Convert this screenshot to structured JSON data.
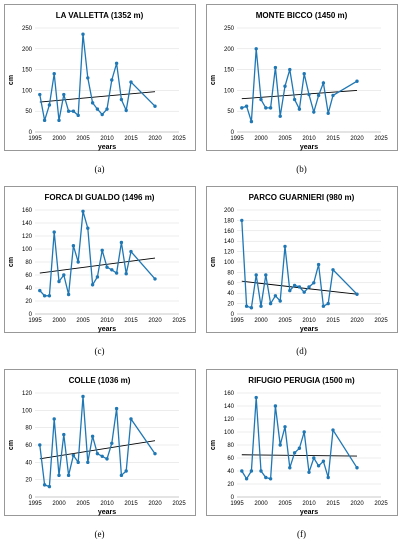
{
  "figure": {
    "colors": {
      "series": "#1f77b4",
      "trend": "#000000",
      "frame": "#7f7f7f",
      "grid": "#d9d9d9"
    }
  },
  "chart_data": [
    {
      "type": "line",
      "title": "LA VALLETTA (1352 m)",
      "caption": "(a)",
      "xlabel": "years",
      "ylabel": "cm",
      "xlim": [
        1995,
        2025
      ],
      "xticks": [
        1995,
        2000,
        2005,
        2010,
        2015,
        2020,
        2025
      ],
      "ylim": [
        0,
        250
      ],
      "yticks": [
        0,
        50,
        100,
        150,
        200,
        250
      ],
      "x": [
        1996,
        1997,
        1998,
        1999,
        2000,
        2001,
        2002,
        2003,
        2004,
        2005,
        2006,
        2007,
        2008,
        2009,
        2010,
        2011,
        2012,
        2013,
        2014,
        2015,
        2020
      ],
      "y": [
        90,
        28,
        65,
        140,
        28,
        90,
        50,
        50,
        40,
        235,
        130,
        70,
        55,
        42,
        55,
        125,
        165,
        78,
        52,
        120,
        62
      ],
      "trend": {
        "x": [
          1996,
          2020
        ],
        "y": [
          72,
          97
        ]
      }
    },
    {
      "type": "line",
      "title": "MONTE BICCO (1450 m)",
      "caption": "(b)",
      "xlabel": "years",
      "ylabel": "cm",
      "xlim": [
        1995,
        2025
      ],
      "xticks": [
        1995,
        2000,
        2005,
        2010,
        2015,
        2020,
        2025
      ],
      "ylim": [
        0,
        250
      ],
      "yticks": [
        0,
        50,
        100,
        150,
        200,
        250
      ],
      "x": [
        1996,
        1997,
        1998,
        1999,
        2000,
        2001,
        2002,
        2003,
        2004,
        2005,
        2006,
        2007,
        2008,
        2009,
        2010,
        2011,
        2012,
        2013,
        2014,
        2015,
        2020
      ],
      "y": [
        58,
        62,
        25,
        200,
        78,
        58,
        58,
        155,
        38,
        110,
        150,
        78,
        55,
        140,
        90,
        48,
        88,
        118,
        45,
        88,
        122
      ],
      "trend": {
        "x": [
          1996,
          2020
        ],
        "y": [
          80,
          100
        ]
      }
    },
    {
      "type": "line",
      "title": "FORCA DI GUALDO (1496 m)",
      "caption": "(c)",
      "xlabel": "years",
      "ylabel": "cm",
      "xlim": [
        1995,
        2025
      ],
      "xticks": [
        1995,
        2000,
        2005,
        2010,
        2015,
        2020,
        2025
      ],
      "ylim": [
        0,
        160
      ],
      "yticks": [
        0,
        20,
        40,
        60,
        80,
        100,
        120,
        140,
        160
      ],
      "x": [
        1996,
        1997,
        1998,
        1999,
        2000,
        2001,
        2002,
        2003,
        2004,
        2005,
        2006,
        2007,
        2008,
        2009,
        2010,
        2011,
        2012,
        2013,
        2014,
        2015,
        2020
      ],
      "y": [
        36,
        28,
        28,
        126,
        50,
        60,
        30,
        105,
        80,
        158,
        132,
        45,
        57,
        98,
        72,
        68,
        63,
        110,
        62,
        96,
        54
      ],
      "trend": {
        "x": [
          1996,
          2020
        ],
        "y": [
          63,
          86
        ]
      }
    },
    {
      "type": "line",
      "title": "PARCO GUARNIERI (980 m)",
      "caption": "(d)",
      "xlabel": "years",
      "ylabel": "cm",
      "xlim": [
        1995,
        2025
      ],
      "xticks": [
        1995,
        2000,
        2005,
        2010,
        2015,
        2020,
        2025
      ],
      "ylim": [
        0,
        200
      ],
      "yticks": [
        0,
        20,
        40,
        60,
        80,
        100,
        120,
        140,
        160,
        180,
        200
      ],
      "x": [
        1996,
        1997,
        1998,
        1999,
        2000,
        2001,
        2002,
        2003,
        2004,
        2005,
        2006,
        2007,
        2008,
        2009,
        2010,
        2011,
        2012,
        2013,
        2014,
        2015,
        2020
      ],
      "y": [
        180,
        15,
        12,
        75,
        15,
        75,
        20,
        35,
        25,
        130,
        45,
        55,
        52,
        42,
        52,
        60,
        95,
        15,
        20,
        85,
        38
      ],
      "trend": {
        "x": [
          1996,
          2020
        ],
        "y": [
          63,
          38
        ]
      }
    },
    {
      "type": "line",
      "title": "COLLE (1036 m)",
      "caption": "(e)",
      "xlabel": "years",
      "ylabel": "cm",
      "xlim": [
        1995,
        2025
      ],
      "xticks": [
        1995,
        2000,
        2005,
        2010,
        2015,
        2020,
        2025
      ],
      "ylim": [
        0,
        120
      ],
      "yticks": [
        0,
        20,
        40,
        60,
        80,
        100,
        120
      ],
      "x": [
        1996,
        1997,
        1998,
        1999,
        2000,
        2001,
        2002,
        2003,
        2004,
        2005,
        2006,
        2007,
        2008,
        2009,
        2010,
        2011,
        2012,
        2013,
        2014,
        2015,
        2020
      ],
      "y": [
        60,
        14,
        12,
        90,
        25,
        72,
        25,
        48,
        40,
        116,
        40,
        70,
        50,
        47,
        44,
        62,
        102,
        25,
        30,
        90,
        50
      ],
      "trend": {
        "x": [
          1996,
          2020
        ],
        "y": [
          44,
          65
        ]
      }
    },
    {
      "type": "line",
      "title": "RIFUGIO PERUGIA (1500 m)",
      "caption": "(f)",
      "xlabel": "years",
      "ylabel": "cm",
      "xlim": [
        1995,
        2025
      ],
      "xticks": [
        1995,
        2000,
        2005,
        2010,
        2015,
        2020,
        2025
      ],
      "ylim": [
        0,
        160
      ],
      "yticks": [
        0,
        20,
        40,
        60,
        80,
        100,
        120,
        140,
        160
      ],
      "x": [
        1996,
        1997,
        1998,
        1999,
        2000,
        2001,
        2002,
        2003,
        2004,
        2005,
        2006,
        2007,
        2008,
        2009,
        2010,
        2011,
        2012,
        2013,
        2014,
        2015,
        2020
      ],
      "y": [
        40,
        28,
        40,
        153,
        40,
        30,
        28,
        140,
        80,
        108,
        45,
        68,
        75,
        100,
        38,
        60,
        48,
        55,
        30,
        103,
        45
      ],
      "trend": {
        "x": [
          1996,
          2020
        ],
        "y": [
          65,
          63
        ]
      }
    }
  ]
}
